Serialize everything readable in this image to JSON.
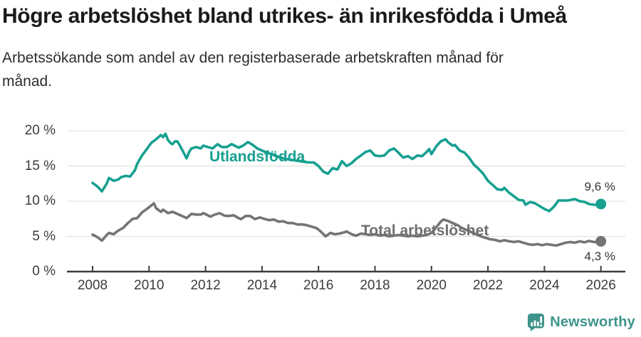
{
  "header": {
    "title": "Högre arbetslöshet bland utrikes- än inrikesfödda i Umeå",
    "subtitle_lines": [
      "Arbetssökande som andel av den registerbaserade arbetskraften månad för",
      "månad."
    ]
  },
  "footer": {
    "brand": "Newsworthy",
    "brand_color": "#3e948b"
  },
  "chart_data": {
    "type": "line",
    "title": "Högre arbetslöshet bland utrikes- än inrikesfödda i Umeå",
    "subtitle": "Arbetssökande som andel av den registerbaserade arbetskraften månad för månad.",
    "xlabel": "",
    "ylabel": "",
    "x_unit": "year (monthly data)",
    "xlim": [
      2007.1,
      2026.9
    ],
    "ylim": [
      0,
      20
    ],
    "grid": "horizontal",
    "legend": "inline-labels",
    "y_ticks": [
      {
        "value": 0,
        "label": "0 %"
      },
      {
        "value": 5,
        "label": "5 %"
      },
      {
        "value": 10,
        "label": "10 %"
      },
      {
        "value": 15,
        "label": "15 %"
      },
      {
        "value": 20,
        "label": "20 %"
      }
    ],
    "x_ticks": [
      {
        "value": 2008,
        "label": "2008"
      },
      {
        "value": 2010,
        "label": "2010"
      },
      {
        "value": 2012,
        "label": "2012"
      },
      {
        "value": 2014,
        "label": "2014"
      },
      {
        "value": 2016,
        "label": "2016"
      },
      {
        "value": 2018,
        "label": "2018"
      },
      {
        "value": 2020,
        "label": "2020"
      },
      {
        "value": 2022,
        "label": "2022"
      },
      {
        "value": 2024,
        "label": "2024"
      },
      {
        "value": 2026,
        "label": "2026"
      }
    ],
    "series": [
      {
        "key": "utlandsfodda",
        "name": "Utlandsfödda",
        "color": "#16a090",
        "end_label": "9,6 %",
        "end_value": 9.6,
        "points": [
          [
            2008.0,
            12.6
          ],
          [
            2008.17,
            12.1
          ],
          [
            2008.33,
            11.4
          ],
          [
            2008.5,
            12.5
          ],
          [
            2008.58,
            13.3
          ],
          [
            2008.75,
            12.9
          ],
          [
            2008.92,
            13.1
          ],
          [
            2009.0,
            13.4
          ],
          [
            2009.17,
            13.6
          ],
          [
            2009.33,
            13.5
          ],
          [
            2009.5,
            14.4
          ],
          [
            2009.58,
            15.3
          ],
          [
            2009.75,
            16.5
          ],
          [
            2009.92,
            17.4
          ],
          [
            2010.08,
            18.3
          ],
          [
            2010.25,
            18.8
          ],
          [
            2010.42,
            19.4
          ],
          [
            2010.5,
            19.1
          ],
          [
            2010.58,
            19.6
          ],
          [
            2010.67,
            18.7
          ],
          [
            2010.75,
            18.3
          ],
          [
            2010.83,
            18.1
          ],
          [
            2010.92,
            18.5
          ],
          [
            2011.0,
            18.5
          ],
          [
            2011.08,
            18.0
          ],
          [
            2011.17,
            17.3
          ],
          [
            2011.33,
            16.1
          ],
          [
            2011.42,
            17.0
          ],
          [
            2011.5,
            17.5
          ],
          [
            2011.67,
            17.7
          ],
          [
            2011.83,
            17.5
          ],
          [
            2011.92,
            17.9
          ],
          [
            2012.08,
            17.7
          ],
          [
            2012.25,
            17.5
          ],
          [
            2012.42,
            18.1
          ],
          [
            2012.58,
            17.7
          ],
          [
            2012.75,
            17.7
          ],
          [
            2012.92,
            18.1
          ],
          [
            2013.08,
            17.8
          ],
          [
            2013.17,
            17.6
          ],
          [
            2013.33,
            17.9
          ],
          [
            2013.5,
            18.4
          ],
          [
            2013.67,
            18.0
          ],
          [
            2013.83,
            17.5
          ],
          [
            2014.0,
            17.2
          ],
          [
            2014.17,
            16.9
          ],
          [
            2014.33,
            16.7
          ],
          [
            2014.5,
            16.4
          ],
          [
            2014.67,
            16.2
          ],
          [
            2014.83,
            16.0
          ],
          [
            2015.0,
            15.9
          ],
          [
            2015.17,
            15.8
          ],
          [
            2015.33,
            15.7
          ],
          [
            2015.5,
            15.6
          ],
          [
            2015.67,
            15.5
          ],
          [
            2015.83,
            15.5
          ],
          [
            2016.0,
            15.0
          ],
          [
            2016.17,
            14.2
          ],
          [
            2016.33,
            13.9
          ],
          [
            2016.5,
            14.7
          ],
          [
            2016.67,
            14.5
          ],
          [
            2016.83,
            15.7
          ],
          [
            2017.0,
            15.0
          ],
          [
            2017.17,
            15.4
          ],
          [
            2017.33,
            16.0
          ],
          [
            2017.5,
            16.5
          ],
          [
            2017.67,
            17.0
          ],
          [
            2017.83,
            17.2
          ],
          [
            2018.0,
            16.5
          ],
          [
            2018.17,
            16.4
          ],
          [
            2018.33,
            16.5
          ],
          [
            2018.5,
            17.2
          ],
          [
            2018.67,
            17.5
          ],
          [
            2018.83,
            16.9
          ],
          [
            2019.0,
            16.2
          ],
          [
            2019.17,
            16.4
          ],
          [
            2019.33,
            16.0
          ],
          [
            2019.5,
            16.5
          ],
          [
            2019.67,
            16.4
          ],
          [
            2019.83,
            17.0
          ],
          [
            2019.92,
            17.4
          ],
          [
            2020.0,
            16.7
          ],
          [
            2020.17,
            17.8
          ],
          [
            2020.33,
            18.5
          ],
          [
            2020.5,
            18.8
          ],
          [
            2020.58,
            18.4
          ],
          [
            2020.75,
            17.9
          ],
          [
            2020.83,
            18.0
          ],
          [
            2021.0,
            17.2
          ],
          [
            2021.17,
            16.9
          ],
          [
            2021.33,
            16.2
          ],
          [
            2021.5,
            15.2
          ],
          [
            2021.67,
            14.6
          ],
          [
            2021.83,
            13.9
          ],
          [
            2022.0,
            12.9
          ],
          [
            2022.17,
            12.3
          ],
          [
            2022.33,
            11.7
          ],
          [
            2022.5,
            11.6
          ],
          [
            2022.58,
            11.9
          ],
          [
            2022.75,
            11.2
          ],
          [
            2022.92,
            10.7
          ],
          [
            2023.08,
            10.2
          ],
          [
            2023.25,
            10.1
          ],
          [
            2023.33,
            9.5
          ],
          [
            2023.5,
            9.9
          ],
          [
            2023.67,
            9.7
          ],
          [
            2023.83,
            9.3
          ],
          [
            2024.0,
            8.9
          ],
          [
            2024.17,
            8.6
          ],
          [
            2024.33,
            9.2
          ],
          [
            2024.5,
            10.1
          ],
          [
            2024.67,
            10.1
          ],
          [
            2024.83,
            10.1
          ],
          [
            2025.08,
            10.3
          ],
          [
            2025.25,
            10.0
          ],
          [
            2025.42,
            9.9
          ],
          [
            2025.58,
            9.6
          ],
          [
            2025.75,
            9.5
          ],
          [
            2025.92,
            9.4
          ],
          [
            2026.0,
            9.6
          ]
        ]
      },
      {
        "key": "total",
        "name": "Total arbetslöshet",
        "color": "#747474",
        "end_label": "4,3 %",
        "end_value": 4.3,
        "points": [
          [
            2008.0,
            5.25
          ],
          [
            2008.17,
            4.9
          ],
          [
            2008.33,
            4.4
          ],
          [
            2008.5,
            5.2
          ],
          [
            2008.58,
            5.5
          ],
          [
            2008.75,
            5.3
          ],
          [
            2008.83,
            5.6
          ],
          [
            2008.92,
            5.85
          ],
          [
            2009.08,
            6.2
          ],
          [
            2009.25,
            6.9
          ],
          [
            2009.42,
            7.5
          ],
          [
            2009.58,
            7.6
          ],
          [
            2009.75,
            8.4
          ],
          [
            2009.92,
            8.9
          ],
          [
            2010.08,
            9.4
          ],
          [
            2010.17,
            9.7
          ],
          [
            2010.25,
            9.0
          ],
          [
            2010.42,
            8.5
          ],
          [
            2010.5,
            8.8
          ],
          [
            2010.67,
            8.3
          ],
          [
            2010.83,
            8.5
          ],
          [
            2011.0,
            8.2
          ],
          [
            2011.17,
            7.9
          ],
          [
            2011.33,
            7.6
          ],
          [
            2011.5,
            8.2
          ],
          [
            2011.67,
            8.1
          ],
          [
            2011.83,
            8.1
          ],
          [
            2011.92,
            8.3
          ],
          [
            2012.08,
            8.0
          ],
          [
            2012.17,
            7.8
          ],
          [
            2012.33,
            8.1
          ],
          [
            2012.5,
            8.3
          ],
          [
            2012.67,
            7.95
          ],
          [
            2012.83,
            7.9
          ],
          [
            2013.0,
            8.0
          ],
          [
            2013.17,
            7.6
          ],
          [
            2013.25,
            7.45
          ],
          [
            2013.42,
            7.9
          ],
          [
            2013.58,
            7.9
          ],
          [
            2013.75,
            7.45
          ],
          [
            2013.92,
            7.7
          ],
          [
            2014.08,
            7.5
          ],
          [
            2014.25,
            7.3
          ],
          [
            2014.42,
            7.4
          ],
          [
            2014.58,
            7.1
          ],
          [
            2014.75,
            7.15
          ],
          [
            2014.92,
            6.9
          ],
          [
            2015.08,
            6.9
          ],
          [
            2015.25,
            6.7
          ],
          [
            2015.42,
            6.7
          ],
          [
            2015.58,
            6.6
          ],
          [
            2015.75,
            6.4
          ],
          [
            2015.92,
            6.2
          ],
          [
            2016.08,
            5.7
          ],
          [
            2016.25,
            5.0
          ],
          [
            2016.42,
            5.5
          ],
          [
            2016.58,
            5.3
          ],
          [
            2016.75,
            5.4
          ],
          [
            2016.92,
            5.6
          ],
          [
            2017.0,
            5.7
          ],
          [
            2017.17,
            5.3
          ],
          [
            2017.33,
            5.1
          ],
          [
            2017.5,
            5.4
          ],
          [
            2017.67,
            5.3
          ],
          [
            2017.83,
            5.2
          ],
          [
            2018.0,
            5.3
          ],
          [
            2018.17,
            5.1
          ],
          [
            2018.33,
            5.2
          ],
          [
            2018.5,
            5.0
          ],
          [
            2018.67,
            5.1
          ],
          [
            2018.83,
            5.2
          ],
          [
            2019.0,
            5.1
          ],
          [
            2019.17,
            5.0
          ],
          [
            2019.33,
            5.1
          ],
          [
            2019.5,
            5.0
          ],
          [
            2019.67,
            5.1
          ],
          [
            2019.83,
            5.2
          ],
          [
            2020.0,
            5.5
          ],
          [
            2020.17,
            6.3
          ],
          [
            2020.33,
            7.1
          ],
          [
            2020.42,
            7.4
          ],
          [
            2020.58,
            7.2
          ],
          [
            2020.75,
            6.9
          ],
          [
            2020.92,
            6.6
          ],
          [
            2021.08,
            6.2
          ],
          [
            2021.25,
            5.9
          ],
          [
            2021.42,
            5.6
          ],
          [
            2021.58,
            5.3
          ],
          [
            2021.75,
            5.0
          ],
          [
            2021.92,
            4.8
          ],
          [
            2022.08,
            4.6
          ],
          [
            2022.25,
            4.5
          ],
          [
            2022.42,
            4.3
          ],
          [
            2022.58,
            4.45
          ],
          [
            2022.75,
            4.3
          ],
          [
            2022.92,
            4.2
          ],
          [
            2023.08,
            4.3
          ],
          [
            2023.25,
            4.1
          ],
          [
            2023.42,
            3.9
          ],
          [
            2023.58,
            3.8
          ],
          [
            2023.75,
            3.9
          ],
          [
            2023.92,
            3.75
          ],
          [
            2024.08,
            3.9
          ],
          [
            2024.25,
            3.8
          ],
          [
            2024.42,
            3.7
          ],
          [
            2024.58,
            3.9
          ],
          [
            2024.75,
            4.1
          ],
          [
            2024.92,
            4.2
          ],
          [
            2025.08,
            4.1
          ],
          [
            2025.25,
            4.3
          ],
          [
            2025.42,
            4.15
          ],
          [
            2025.58,
            4.35
          ],
          [
            2025.75,
            4.2
          ],
          [
            2025.92,
            4.25
          ],
          [
            2026.0,
            4.3
          ]
        ]
      }
    ]
  }
}
